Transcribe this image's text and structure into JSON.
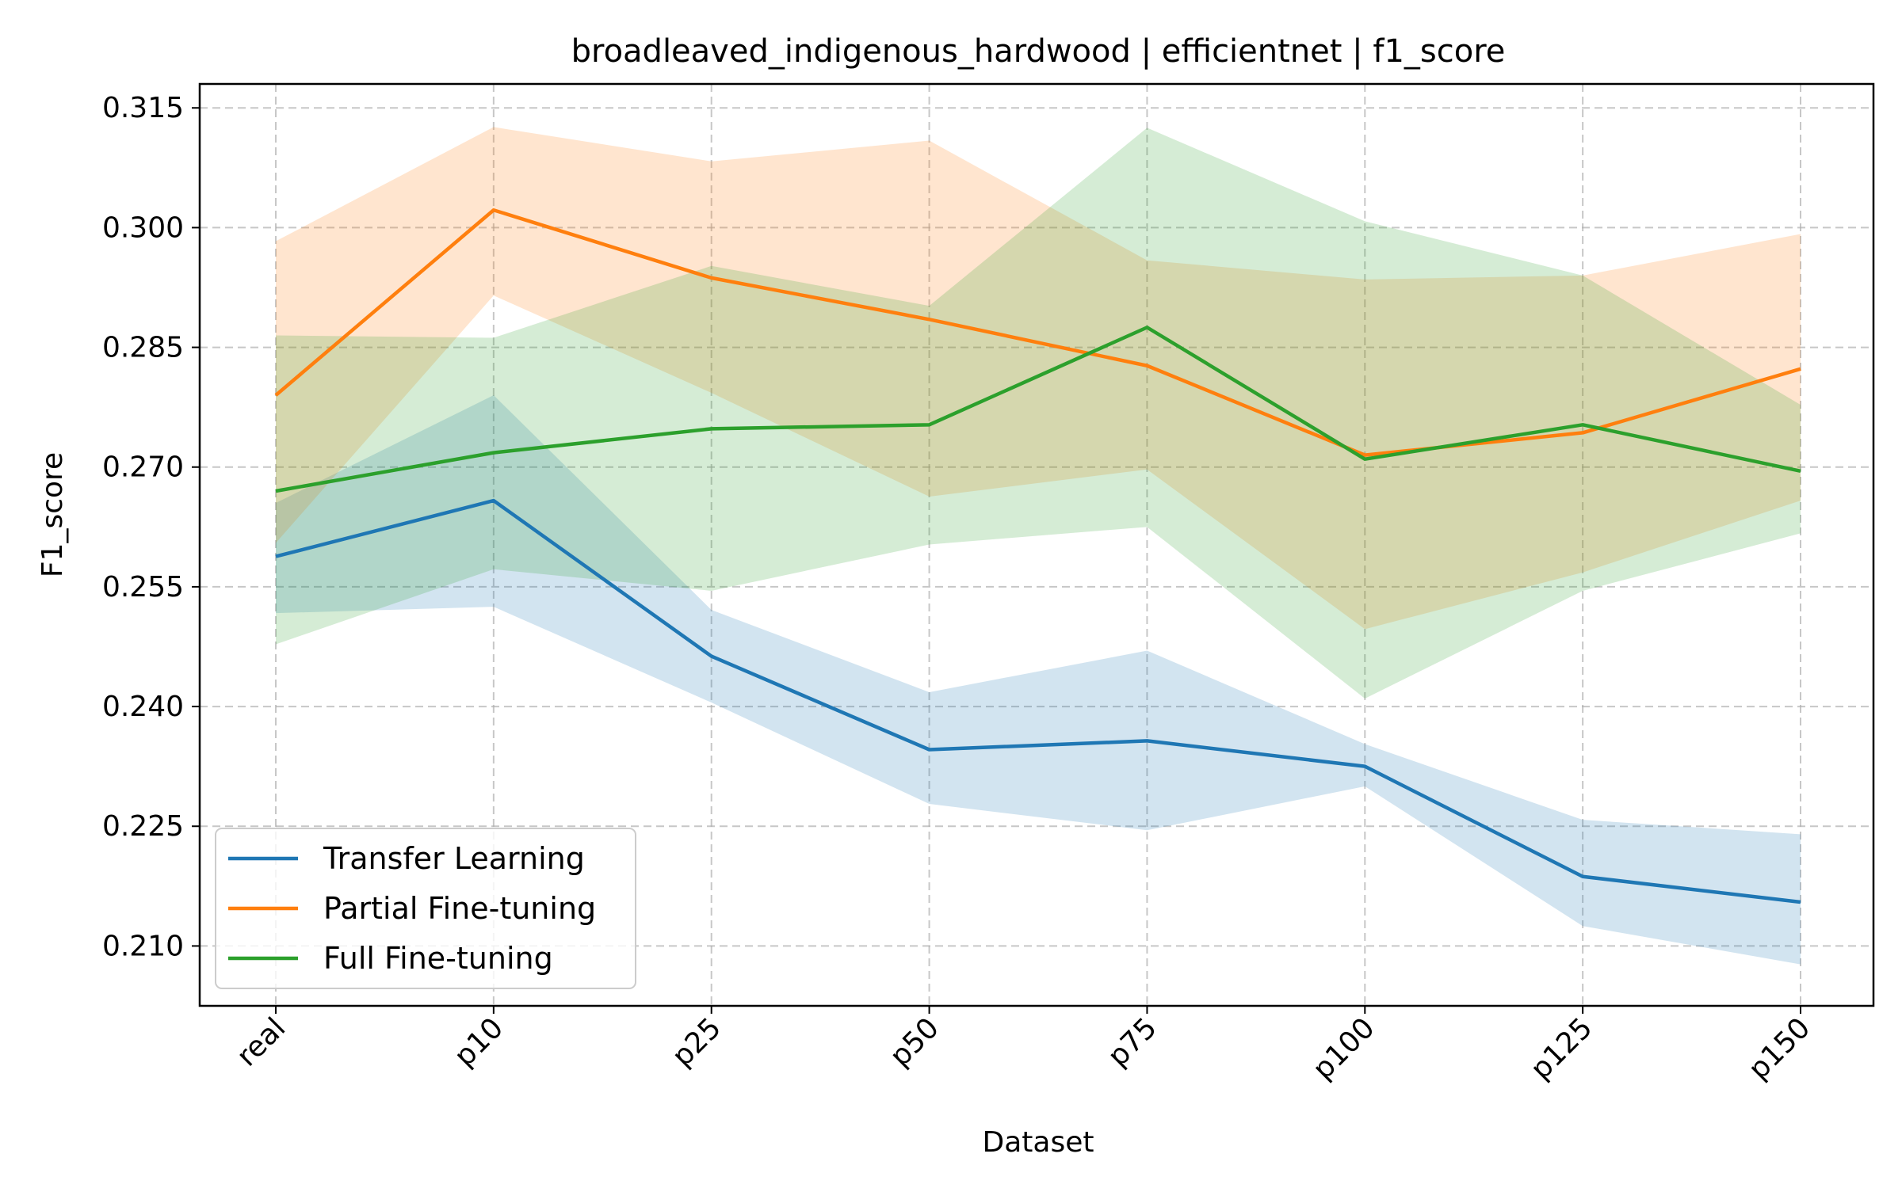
{
  "chart_data": {
    "type": "line",
    "title": "broadleaved_indigenous_hardwood | efficientnet | f1_score",
    "xlabel": "Dataset",
    "ylabel": "F1_score",
    "categories": [
      "real",
      "p10",
      "p25",
      "p50",
      "p75",
      "p100",
      "p125",
      "p150"
    ],
    "ylim": [
      0.2025,
      0.318
    ],
    "yticks": [
      0.21,
      0.225,
      0.24,
      0.255,
      0.27,
      0.285,
      0.3,
      0.315
    ],
    "ytick_labels": [
      "0.210",
      "0.225",
      "0.240",
      "0.255",
      "0.270",
      "0.285",
      "0.300",
      "0.315"
    ],
    "grid": true,
    "legend_position": "lower-left",
    "series": [
      {
        "name": "Transfer Learning",
        "color": "#1f77b4",
        "values": [
          0.2588,
          0.2658,
          0.2463,
          0.2346,
          0.2357,
          0.2325,
          0.2187,
          0.2155
        ],
        "lower": [
          0.2517,
          0.2525,
          0.2405,
          0.2278,
          0.2245,
          0.23,
          0.2125,
          0.2077
        ],
        "upper": [
          0.2655,
          0.279,
          0.2521,
          0.2418,
          0.247,
          0.2353,
          0.2258,
          0.224
        ]
      },
      {
        "name": "Partial Fine-tuning",
        "color": "#ff7f0e",
        "values": [
          0.279,
          0.3022,
          0.2937,
          0.2885,
          0.2827,
          0.2715,
          0.2743,
          0.2823
        ],
        "lower": [
          0.2605,
          0.2915,
          0.2793,
          0.2663,
          0.2697,
          0.2497,
          0.2568,
          0.2658
        ],
        "upper": [
          0.2983,
          0.3126,
          0.3083,
          0.3109,
          0.2959,
          0.2935,
          0.294,
          0.2992
        ]
      },
      {
        "name": "Full Fine-tuning",
        "color": "#2ca02c",
        "values": [
          0.267,
          0.2718,
          0.2748,
          0.2753,
          0.2875,
          0.271,
          0.2753,
          0.2695
        ],
        "lower": [
          0.2478,
          0.2572,
          0.2545,
          0.2603,
          0.2625,
          0.241,
          0.2545,
          0.2617
        ],
        "upper": [
          0.2865,
          0.2862,
          0.2952,
          0.2902,
          0.3125,
          0.3008,
          0.294,
          0.2778
        ]
      }
    ]
  }
}
